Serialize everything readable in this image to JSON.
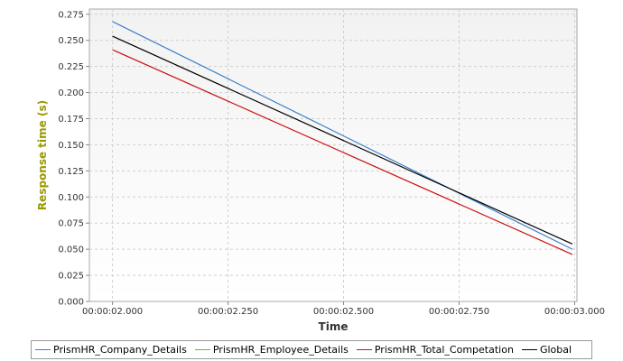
{
  "chart_data": {
    "type": "line",
    "xlabel": "Time",
    "ylabel": "Response time (s)",
    "x_tick_labels": [
      "00:00:02.000",
      "00:00:02.250",
      "00:00:02.500",
      "00:00:02.750",
      "00:00:03.000"
    ],
    "y_tick_labels": [
      "0.000",
      "0.025",
      "0.050",
      "0.075",
      "0.100",
      "0.125",
      "0.150",
      "0.175",
      "0.200",
      "0.225",
      "0.250",
      "0.275"
    ],
    "xlim": [
      1.95,
      3.005
    ],
    "ylim": [
      0,
      0.28
    ],
    "grid": true,
    "legend_position": "bottom",
    "series": [
      {
        "name": "PrismHR_Company_Details",
        "color": "#3c7fcc",
        "x": [
          2.0,
          2.995
        ],
        "y": [
          0.268,
          0.05
        ]
      },
      {
        "name": "PrismHR_Employee_Details",
        "color": "#66bb33",
        "x": [],
        "y": []
      },
      {
        "name": "PrismHR_Total_Competation",
        "color": "#cc1111",
        "x": [
          2.0,
          2.995
        ],
        "y": [
          0.241,
          0.045
        ]
      },
      {
        "name": "Global",
        "color": "#000000",
        "x": [
          2.0,
          2.995
        ],
        "y": [
          0.254,
          0.055
        ]
      }
    ],
    "colors": {
      "plot_top": "#f2f2f2",
      "plot_bottom": "#ffffff",
      "grid": "#d0d0d0",
      "axis_title": "#999900"
    }
  }
}
